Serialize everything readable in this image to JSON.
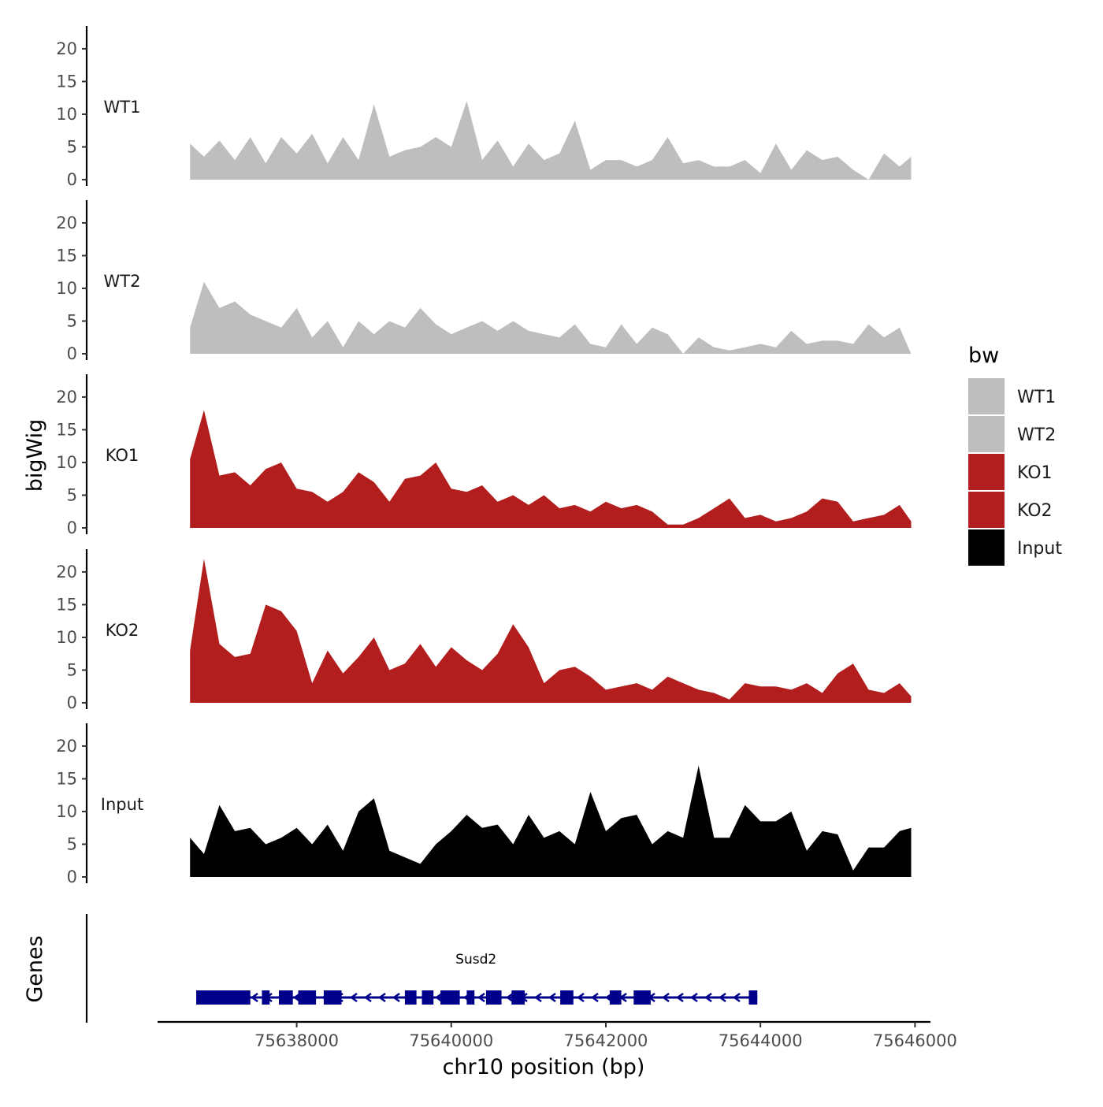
{
  "chart_data": {
    "type": "area",
    "ylabel": "bigWig",
    "xlabel": "chr10 position (bp)",
    "genes_label": "Genes",
    "ylim": [
      0,
      23
    ],
    "y_ticks": [
      0,
      5,
      10,
      15,
      20
    ],
    "xlim": [
      75636200,
      75646200
    ],
    "x_ticks": [
      75638000,
      75640000,
      75642000,
      75644000,
      75646000
    ],
    "x_tick_labels": [
      "75638000",
      "75640000",
      "75642000",
      "75644000",
      "75646000"
    ],
    "legend": {
      "title": "bw",
      "position": "right",
      "entries": [
        {
          "label": "WT1",
          "color": "#bebebe"
        },
        {
          "label": "WT2",
          "color": "#bebebe"
        },
        {
          "label": "KO1",
          "color": "#b21e1e"
        },
        {
          "label": "KO2",
          "color": "#b21e1e"
        },
        {
          "label": "Input",
          "color": "#000000"
        }
      ]
    },
    "x": [
      75636620,
      75636800,
      75637000,
      75637200,
      75637400,
      75637600,
      75637800,
      75638000,
      75638200,
      75638400,
      75638600,
      75638800,
      75639000,
      75639200,
      75639400,
      75639600,
      75639800,
      75640000,
      75640200,
      75640400,
      75640600,
      75640800,
      75641000,
      75641200,
      75641400,
      75641600,
      75641800,
      75642000,
      75642200,
      75642400,
      75642600,
      75642800,
      75643000,
      75643200,
      75643400,
      75643600,
      75643800,
      75644000,
      75644200,
      75644400,
      75644600,
      75644800,
      75645000,
      75645200,
      75645400,
      75645600,
      75645800,
      75645950
    ],
    "series": [
      {
        "name": "WT1",
        "color": "#bebebe",
        "values": [
          5.5,
          3.5,
          6,
          3,
          6.5,
          2.5,
          6.5,
          4,
          7,
          2.5,
          6.5,
          3,
          11.5,
          3.5,
          4.5,
          5,
          6.5,
          5,
          12,
          3,
          6,
          2,
          5.5,
          3,
          4,
          9,
          1.5,
          3,
          3,
          2,
          3,
          6.5,
          2.5,
          3,
          2,
          2,
          3,
          1,
          5.5,
          1.5,
          4.5,
          3,
          3.5,
          1.5,
          0,
          4,
          2,
          3.5
        ]
      },
      {
        "name": "WT2",
        "color": "#bebebe",
        "values": [
          4,
          11,
          7,
          8,
          6,
          5,
          4,
          7,
          2.5,
          5,
          1,
          5,
          3,
          5,
          4,
          7,
          4.5,
          3,
          4,
          5,
          3.5,
          5,
          3.5,
          3,
          2.5,
          4.5,
          1.5,
          1,
          4.5,
          1.5,
          4,
          3,
          0,
          2.5,
          1,
          0.5,
          1,
          1.5,
          1,
          3.5,
          1.5,
          2,
          2,
          1.5,
          4.5,
          2.5,
          4,
          0
        ]
      },
      {
        "name": "KO1",
        "color": "#b21e1e",
        "values": [
          10.5,
          18,
          8,
          8.5,
          6.5,
          9,
          10,
          6,
          5.5,
          4,
          5.5,
          8.5,
          7,
          4,
          7.5,
          8,
          10,
          6,
          5.5,
          6.5,
          4,
          5,
          3.5,
          5,
          3,
          3.5,
          2.5,
          4,
          3,
          3.5,
          2.5,
          0.5,
          0.5,
          1.5,
          3,
          4.5,
          1.5,
          2,
          1,
          1.5,
          2.5,
          4.5,
          4,
          1,
          1.5,
          2,
          3.5,
          1
        ]
      },
      {
        "name": "KO2",
        "color": "#b21e1e",
        "values": [
          8,
          22,
          9,
          7,
          7.5,
          15,
          14,
          11,
          3,
          8,
          4.5,
          7,
          10,
          5,
          6,
          9,
          5.5,
          8.5,
          6.5,
          5,
          7.5,
          12,
          8.5,
          3,
          5,
          5.5,
          4,
          2,
          2.5,
          3,
          2,
          4,
          3,
          2,
          1.5,
          0.5,
          3,
          2.5,
          2.5,
          2,
          3,
          1.5,
          4.5,
          6,
          2,
          1.5,
          3,
          1
        ]
      },
      {
        "name": "Input",
        "color": "#000000",
        "values": [
          6,
          3.5,
          11,
          7,
          7.5,
          5,
          6,
          7.5,
          5,
          8,
          4,
          10,
          12,
          4,
          3,
          2,
          5,
          7,
          9.5,
          7.5,
          8,
          5,
          9.5,
          6,
          7,
          5,
          13,
          7,
          9,
          9.5,
          5,
          7,
          6,
          17,
          6,
          6,
          11,
          8.5,
          8.5,
          10,
          4,
          7,
          6.5,
          1,
          4.5,
          4.5,
          7,
          7.5
        ]
      }
    ],
    "genes": [
      {
        "name": "Susd2",
        "strand": "-",
        "color": "#00008b",
        "start": 75636700,
        "end": 75643960,
        "label_x": 75640320,
        "exons": [
          [
            75636700,
            75637400
          ],
          [
            75637550,
            75637650
          ],
          [
            75637770,
            75637950
          ],
          [
            75638020,
            75638250
          ],
          [
            75638350,
            75638580
          ],
          [
            75639400,
            75639550
          ],
          [
            75639620,
            75639770
          ],
          [
            75639860,
            75640110
          ],
          [
            75640200,
            75640300
          ],
          [
            75640450,
            75640650
          ],
          [
            75640780,
            75640950
          ],
          [
            75641410,
            75641580
          ],
          [
            75642050,
            75642200
          ],
          [
            75642360,
            75642580
          ],
          [
            75643850,
            75643960
          ]
        ]
      }
    ]
  }
}
